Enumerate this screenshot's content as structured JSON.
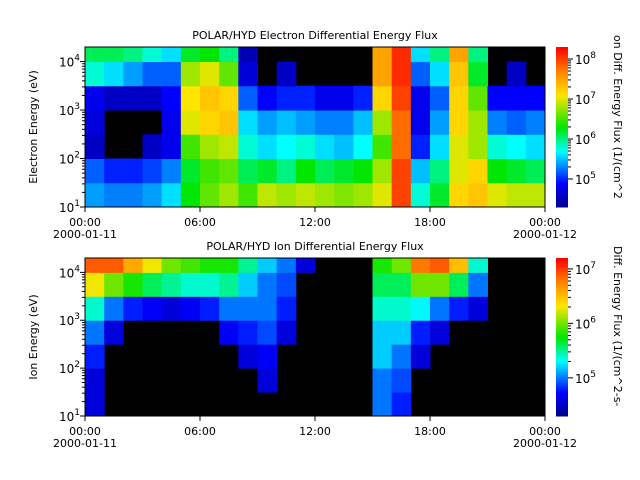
{
  "chart_data": [
    {
      "type": "heatmap",
      "title": "POLAR/HYD  Electron Differential Energy Flux",
      "ylabel": "Electron Energy (eV)",
      "colorbar_label": "on Diff. Energy Flux (1/(cm^2",
      "x_ticks": [
        "00:00",
        "06:00",
        "12:00",
        "18:00",
        "00:00"
      ],
      "x_dates": [
        "2000-01-11",
        "",
        "",
        "",
        "2000-01-12"
      ],
      "y_ticks": [
        "10",
        "10",
        "10",
        "10"
      ],
      "y_exps": [
        "1",
        "2",
        "3",
        "4"
      ],
      "ylim_log10": [
        1,
        4.3
      ],
      "colorbar_ticks": [
        "10",
        "10",
        "10",
        "10"
      ],
      "colorbar_exps": [
        "5",
        "6",
        "7",
        "8"
      ],
      "colorbar_log10": [
        4.3,
        8.3
      ],
      "energy_bins_log10": [
        1,
        1.5,
        2,
        2.5,
        3,
        3.5,
        4
      ],
      "hours": [
        0,
        1,
        2,
        3,
        4,
        5,
        6,
        7,
        8,
        9,
        10,
        11,
        12,
        13,
        14,
        15,
        16,
        17,
        18,
        19,
        20,
        21,
        22,
        23
      ],
      "log10_flux": [
        [
          5.4,
          5.3,
          5.3,
          5.4,
          5.6,
          6.3,
          6.6,
          6.8,
          6.5,
          6.9,
          6.8,
          6.9,
          6.8,
          6.7,
          6.8,
          7.0,
          8.0,
          5.8,
          6.2,
          7.2,
          7.3,
          7.0,
          6.9,
          6.9
        ],
        [
          5.2,
          5.0,
          5.0,
          5.1,
          5.3,
          6.2,
          6.5,
          6.6,
          6.1,
          6.2,
          6.0,
          6.3,
          6.1,
          6.2,
          6.3,
          6.8,
          8.0,
          5.5,
          6.0,
          7.0,
          7.2,
          6.3,
          6.2,
          6.1
        ],
        [
          4.6,
          null,
          null,
          4.6,
          4.8,
          6.5,
          6.8,
          6.9,
          5.8,
          5.6,
          5.7,
          5.8,
          5.6,
          5.5,
          5.7,
          6.5,
          7.8,
          5.0,
          5.6,
          7.0,
          6.8,
          5.8,
          5.7,
          5.6
        ],
        [
          4.7,
          null,
          null,
          null,
          4.8,
          7.0,
          7.2,
          7.3,
          5.6,
          5.4,
          5.5,
          5.4,
          5.3,
          5.3,
          5.5,
          6.8,
          7.8,
          4.8,
          5.4,
          7.2,
          6.8,
          5.3,
          5.2,
          5.3
        ],
        [
          4.8,
          4.6,
          4.6,
          4.6,
          4.9,
          7.1,
          7.3,
          7.2,
          5.2,
          4.9,
          5.0,
          5.0,
          4.8,
          4.8,
          5.0,
          7.2,
          8.0,
          4.8,
          5.2,
          7.2,
          6.6,
          4.9,
          4.9,
          4.9
        ],
        [
          5.8,
          5.6,
          5.4,
          5.2,
          5.2,
          6.8,
          7.0,
          6.6,
          4.7,
          null,
          4.6,
          null,
          null,
          null,
          null,
          7.5,
          8.1,
          5.2,
          5.6,
          7.3,
          6.2,
          null,
          4.6,
          null
        ],
        [
          6.1,
          6.1,
          6.0,
          5.8,
          5.6,
          6.2,
          6.3,
          6.0,
          4.5,
          null,
          null,
          null,
          null,
          null,
          null,
          7.5,
          8.1,
          5.6,
          6.0,
          7.5,
          6.0,
          null,
          null,
          null
        ]
      ]
    },
    {
      "type": "heatmap",
      "title": "POLAR/HYD  Ion Differential Energy Flux",
      "ylabel": "Ion Energy (eV)",
      "colorbar_label": "Diff. Energy Flux (1/(cm^2-s-",
      "x_ticks": [
        "00:00",
        "06:00",
        "12:00",
        "18:00",
        "00:00"
      ],
      "x_dates": [
        "2000-01-11",
        "",
        "",
        "",
        "2000-01-12"
      ],
      "y_ticks": [
        "10",
        "10",
        "10",
        "10"
      ],
      "y_exps": [
        "1",
        "2",
        "3",
        "4"
      ],
      "ylim_log10": [
        1,
        4.3
      ],
      "colorbar_ticks": [
        "10",
        "10",
        "10"
      ],
      "colorbar_exps": [
        "5",
        "6",
        "7"
      ],
      "colorbar_log10": [
        4.3,
        7.2
      ],
      "energy_bins_log10": [
        1,
        1.5,
        2,
        2.5,
        3,
        3.5,
        4
      ],
      "hours": [
        0,
        1,
        2,
        3,
        4,
        5,
        6,
        7,
        8,
        9,
        10,
        11,
        12,
        13,
        14,
        15,
        16,
        17,
        18,
        19,
        20,
        21,
        22,
        23
      ],
      "log10_flux": [
        [
          4.6,
          null,
          null,
          null,
          null,
          null,
          null,
          null,
          null,
          null,
          null,
          null,
          null,
          null,
          null,
          5.0,
          4.8,
          null,
          null,
          null,
          null,
          null,
          null,
          null
        ],
        [
          4.6,
          null,
          null,
          null,
          null,
          null,
          null,
          null,
          null,
          4.6,
          null,
          null,
          null,
          null,
          null,
          5.0,
          4.9,
          null,
          null,
          null,
          null,
          null,
          null,
          null
        ],
        [
          4.8,
          null,
          null,
          null,
          null,
          null,
          null,
          null,
          4.6,
          4.7,
          null,
          null,
          null,
          null,
          null,
          5.2,
          5.0,
          4.6,
          null,
          null,
          null,
          null,
          null,
          null
        ],
        [
          5.0,
          4.6,
          null,
          null,
          null,
          null,
          null,
          4.7,
          4.8,
          4.9,
          4.6,
          null,
          null,
          null,
          null,
          5.2,
          5.2,
          4.8,
          4.6,
          null,
          null,
          null,
          null,
          null
        ],
        [
          5.4,
          5.0,
          4.8,
          4.7,
          4.6,
          4.7,
          4.8,
          5.0,
          5.0,
          5.0,
          4.8,
          null,
          null,
          null,
          null,
          5.4,
          5.4,
          5.3,
          5.0,
          4.8,
          4.6,
          null,
          null,
          null
        ],
        [
          6.3,
          6.0,
          5.8,
          5.6,
          5.5,
          5.4,
          5.4,
          5.5,
          5.2,
          5.0,
          4.9,
          null,
          null,
          null,
          null,
          5.6,
          5.6,
          6.0,
          6.0,
          5.6,
          5.0,
          null,
          null,
          null
        ],
        [
          6.9,
          6.9,
          6.6,
          6.3,
          6.0,
          5.9,
          5.8,
          5.8,
          5.5,
          5.2,
          5.0,
          4.6,
          null,
          null,
          null,
          5.8,
          6.0,
          6.8,
          6.9,
          6.5,
          5.4,
          null,
          null,
          null
        ]
      ]
    }
  ]
}
